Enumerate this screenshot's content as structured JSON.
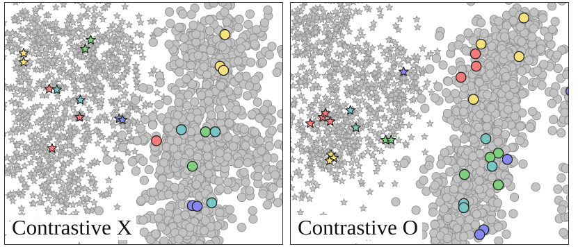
{
  "panels": [
    {
      "label": "Contrastive X"
    },
    {
      "label": "Contrastive O"
    }
  ],
  "colors": {
    "cloud_fill": "#c3c3c3",
    "cloud_stroke": "#8f8f8f",
    "highlight_stroke": "#222222",
    "yellow": "#f6e27a",
    "green": "#7fcf7f",
    "red": "#f47b7b",
    "teal": "#79c6c6",
    "blue": "#8888f2"
  },
  "markers": {
    "background_star": "star",
    "background_circle": "circle"
  }
}
